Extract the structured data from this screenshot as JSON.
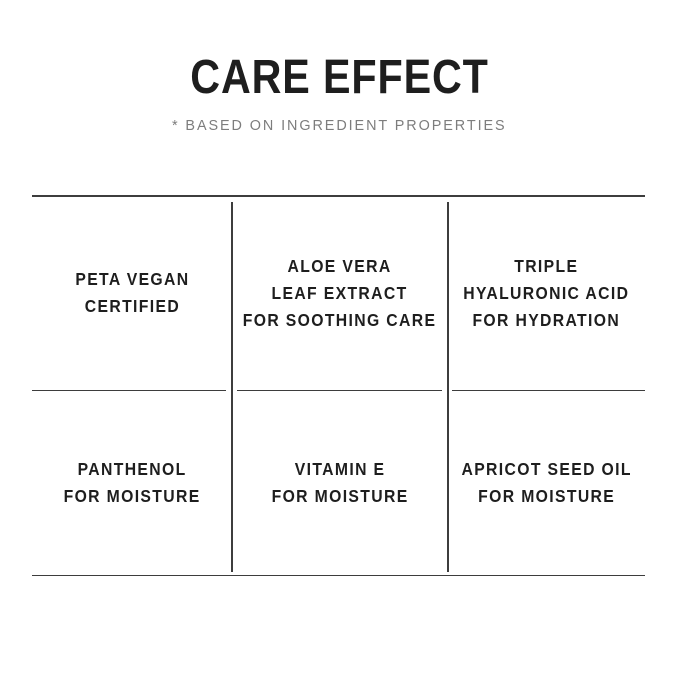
{
  "header": {
    "title": "CARE EFFECT",
    "subtitle": "* BASED ON INGREDIENT PROPERTIES"
  },
  "grid": {
    "rows": [
      {
        "cells": [
          {
            "text": "PETA VEGAN\nCERTIFIED"
          },
          {
            "text": "ALOE VERA\nLEAF EXTRACT\nFOR SOOTHING CARE"
          },
          {
            "text": "TRIPLE\nHYALURONIC ACID\nFOR HYDRATION"
          }
        ]
      },
      {
        "cells": [
          {
            "text": "PANTHENOL\nFOR MOISTURE"
          },
          {
            "text": "VITAMIN E\nFOR MOISTURE"
          },
          {
            "text": "APRICOT SEED OIL\nFOR MOISTURE"
          }
        ]
      }
    ]
  },
  "colors": {
    "background": "#ffffff",
    "text": "#1e1e1e",
    "subtitle": "#7d7d7d",
    "line": "#3d3d3d"
  }
}
